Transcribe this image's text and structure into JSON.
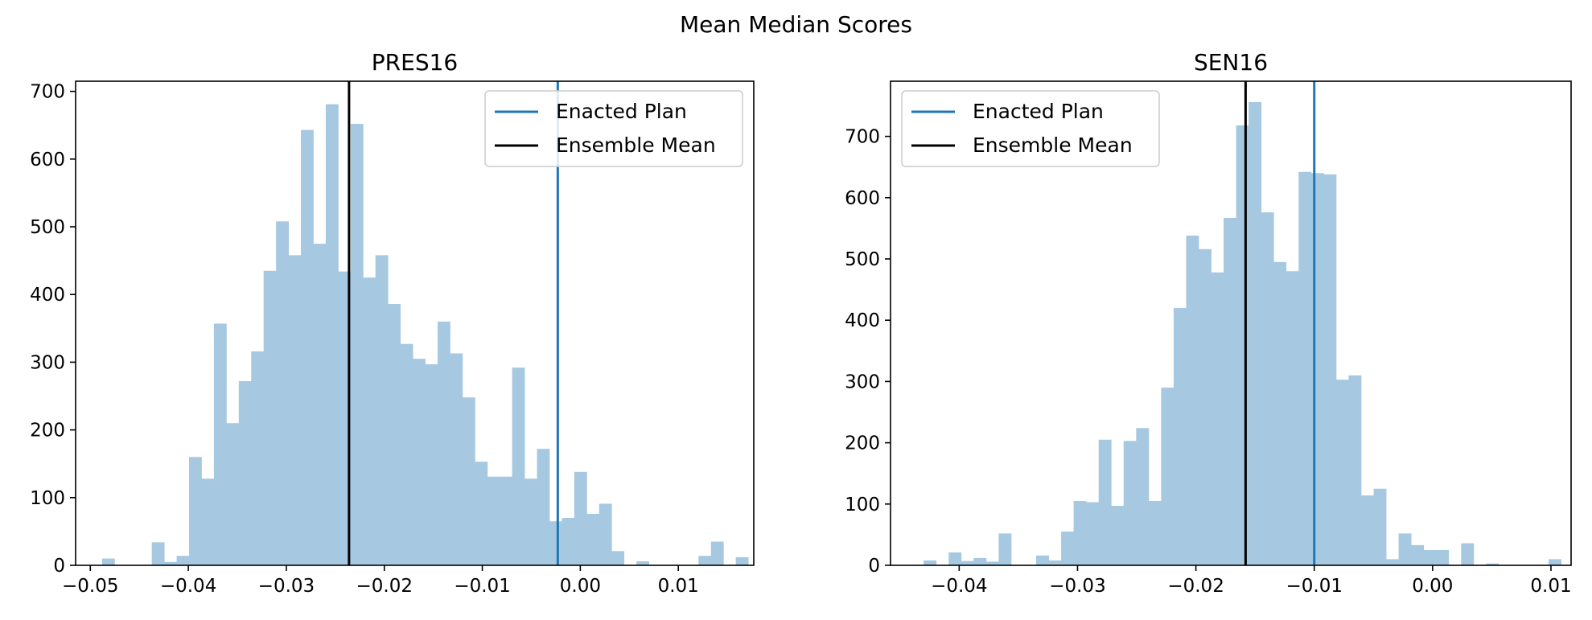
{
  "title": "Mean Median Scores",
  "colors": {
    "bar": "#a6c8e0",
    "enacted": "#1f77b4",
    "mean": "#000000"
  },
  "chart_data": [
    {
      "type": "bar",
      "title": "PRES16",
      "xlim": [
        -0.0515,
        0.0177
      ],
      "ylim": [
        0,
        715
      ],
      "xticks": [
        -0.05,
        -0.04,
        -0.03,
        -0.02,
        -0.01,
        0.0,
        0.01
      ],
      "xticklabels": [
        "−0.05",
        "−0.04",
        "−0.03",
        "−0.02",
        "−0.01",
        "0.00",
        "0.01"
      ],
      "yticks": [
        0,
        100,
        200,
        300,
        400,
        500,
        600,
        700
      ],
      "yticklabels": [
        "0",
        "100",
        "200",
        "300",
        "400",
        "500",
        "600",
        "700"
      ],
      "bin_start": -0.0488,
      "bin_width": 0.001268,
      "counts": [
        10,
        0,
        0,
        0,
        34,
        5,
        14,
        160,
        128,
        357,
        210,
        272,
        316,
        435,
        508,
        458,
        643,
        475,
        681,
        434,
        652,
        425,
        458,
        386,
        327,
        305,
        297,
        360,
        313,
        248,
        153,
        131,
        131,
        292,
        128,
        172,
        65,
        70,
        138,
        76,
        91,
        21,
        0,
        6,
        0,
        0,
        0,
        0,
        14,
        35,
        0,
        12
      ],
      "enacted_plan": -0.0023,
      "ensemble_mean": -0.0236,
      "legend": {
        "position": "upper right",
        "entries": [
          "Enacted Plan",
          "Ensemble Mean"
        ]
      }
    },
    {
      "type": "bar",
      "title": "SEN16",
      "xlim": [
        -0.0458,
        0.0117
      ],
      "ylim": [
        0,
        790
      ],
      "xticks": [
        -0.04,
        -0.03,
        -0.02,
        -0.01,
        0.0,
        0.01
      ],
      "xticklabels": [
        "−0.04",
        "−0.03",
        "−0.02",
        "−0.01",
        "0.00",
        "0.01"
      ],
      "yticks": [
        0,
        100,
        200,
        300,
        400,
        500,
        600,
        700
      ],
      "yticklabels": [
        "0",
        "100",
        "200",
        "300",
        "400",
        "500",
        "600",
        "700"
      ],
      "bin_start": -0.043,
      "bin_width": 0.001056,
      "counts": [
        8,
        0,
        21,
        7,
        12,
        6,
        52,
        0,
        0,
        16,
        8,
        55,
        105,
        103,
        205,
        97,
        203,
        224,
        105,
        290,
        420,
        538,
        516,
        478,
        567,
        718,
        756,
        576,
        495,
        480,
        642,
        640,
        638,
        303,
        310,
        114,
        125,
        10,
        52,
        33,
        25,
        25,
        0,
        36,
        0,
        3,
        0,
        0,
        0,
        0,
        10
      ],
      "enacted_plan": -0.01,
      "ensemble_mean": -0.0158,
      "legend": {
        "position": "upper left",
        "entries": [
          "Enacted Plan",
          "Ensemble Mean"
        ]
      }
    }
  ]
}
